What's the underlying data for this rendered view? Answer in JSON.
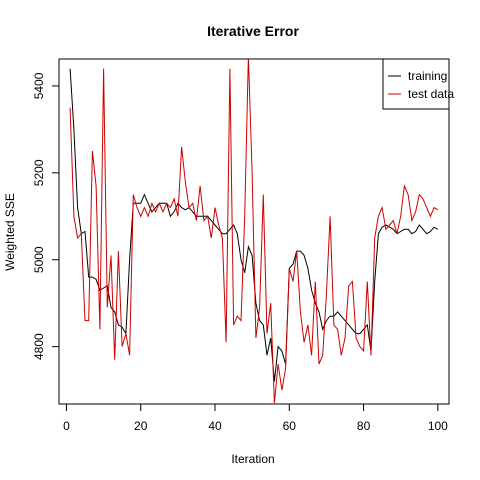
{
  "chart_data": {
    "type": "line",
    "title": "Iterative Error",
    "xlabel": "Iteration",
    "ylabel": "Weighted SSE",
    "xlim": [
      -2,
      103
    ],
    "ylim": [
      4668,
      5462
    ],
    "xticks": [
      0,
      20,
      40,
      60,
      80,
      100
    ],
    "yticks": [
      4800,
      5000,
      5200,
      5400
    ],
    "grid": false,
    "legend_position": "top-right",
    "x": [
      1,
      2,
      3,
      4,
      5,
      6,
      7,
      8,
      9,
      10,
      11,
      12,
      13,
      14,
      15,
      16,
      17,
      18,
      19,
      20,
      21,
      22,
      23,
      24,
      25,
      26,
      27,
      28,
      29,
      30,
      31,
      32,
      33,
      34,
      35,
      36,
      37,
      38,
      39,
      40,
      41,
      42,
      43,
      44,
      45,
      46,
      47,
      48,
      49,
      50,
      51,
      52,
      53,
      54,
      55,
      56,
      57,
      58,
      59,
      60,
      61,
      62,
      63,
      64,
      65,
      66,
      67,
      68,
      69,
      70,
      71,
      72,
      73,
      74,
      75,
      76,
      77,
      78,
      79,
      80,
      81,
      82,
      83,
      84,
      85,
      86,
      87,
      88,
      89,
      90,
      91,
      92,
      93,
      94,
      95,
      96,
      97,
      98,
      99,
      100
    ],
    "series": [
      {
        "name": "training",
        "color": "#000000",
        "values": [
          5440,
          5300,
          5120,
          5060,
          5065,
          4960,
          4960,
          4955,
          4930,
          4935,
          4940,
          4890,
          4880,
          4850,
          4845,
          4830,
          5000,
          5130,
          5130,
          5130,
          5150,
          5130,
          5110,
          5120,
          5130,
          5130,
          5130,
          5100,
          5110,
          5130,
          5120,
          5115,
          5120,
          5110,
          5100,
          5100,
          5100,
          5100,
          5090,
          5080,
          5070,
          5060,
          5060,
          5070,
          5080,
          5060,
          5000,
          4970,
          5030,
          5010,
          4900,
          4860,
          4850,
          4780,
          4820,
          4720,
          4800,
          4790,
          4760,
          4980,
          4990,
          5020,
          5020,
          5010,
          4980,
          4930,
          4900,
          4880,
          4840,
          4860,
          4870,
          4870,
          4880,
          4870,
          4860,
          4850,
          4840,
          4830,
          4830,
          4840,
          4850,
          4790,
          4950,
          5060,
          5075,
          5080,
          5075,
          5070,
          5060,
          5065,
          5070,
          5070,
          5060,
          5065,
          5080,
          5070,
          5060,
          5065,
          5075,
          5070
        ]
      },
      {
        "name": "test data",
        "color": "#cc0000",
        "values": [
          5350,
          5100,
          5050,
          5060,
          4860,
          4860,
          5250,
          5170,
          4840,
          5440,
          4890,
          5010,
          4770,
          5020,
          4800,
          4830,
          4780,
          5150,
          5120,
          5100,
          5120,
          5100,
          5130,
          5110,
          5130,
          5110,
          5130,
          5120,
          5140,
          5100,
          5260,
          5180,
          5120,
          5130,
          5090,
          5170,
          5090,
          5100,
          5050,
          5120,
          5080,
          5050,
          4810,
          5440,
          4850,
          4870,
          4860,
          5100,
          5470,
          5200,
          4820,
          4890,
          5150,
          4830,
          4900,
          4670,
          4760,
          4700,
          4750,
          4980,
          4950,
          5020,
          4880,
          4810,
          4850,
          4780,
          4950,
          4760,
          4780,
          4920,
          5100,
          4850,
          4840,
          4780,
          4820,
          4940,
          4950,
          4820,
          4800,
          4790,
          4950,
          4780,
          5050,
          5100,
          5120,
          5070,
          5080,
          5090,
          5060,
          5100,
          5170,
          5150,
          5090,
          5110,
          5150,
          5140,
          5120,
          5100,
          5120,
          5115
        ]
      }
    ]
  }
}
